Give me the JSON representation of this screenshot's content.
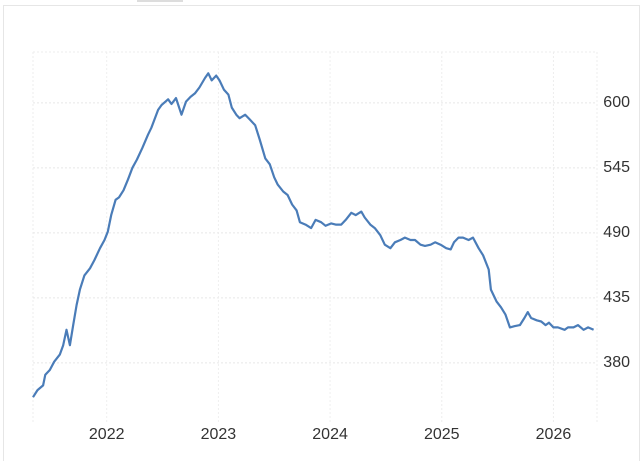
{
  "chart_data": {
    "type": "line",
    "x": [
      2021.34,
      2021.38,
      2021.43,
      2021.45,
      2021.49,
      2021.53,
      2021.58,
      2021.61,
      2021.64,
      2021.67,
      2021.7,
      2021.73,
      2021.76,
      2021.8,
      2021.85,
      2021.89,
      2021.94,
      2021.98,
      2022.01,
      2022.04,
      2022.08,
      2022.11,
      2022.15,
      2022.19,
      2022.23,
      2022.27,
      2022.32,
      2022.37,
      2022.4,
      2022.46,
      2022.49,
      2022.55,
      2022.58,
      2022.62,
      2022.67,
      2022.71,
      2022.75,
      2022.79,
      2022.83,
      2022.88,
      2022.91,
      2022.94,
      2022.98,
      2023.01,
      2023.05,
      2023.09,
      2023.12,
      2023.16,
      2023.19,
      2023.24,
      2023.28,
      2023.33,
      2023.37,
      2023.42,
      2023.46,
      2023.5,
      2023.53,
      2023.58,
      2023.62,
      2023.66,
      2023.7,
      2023.73,
      2023.78,
      2023.83,
      2023.87,
      2023.92,
      2023.96,
      2024.01,
      2024.05,
      2024.1,
      2024.14,
      2024.19,
      2024.23,
      2024.28,
      2024.31,
      2024.36,
      2024.4,
      2024.45,
      2024.49,
      2024.54,
      2024.58,
      2024.63,
      2024.67,
      2024.72,
      2024.76,
      2024.81,
      2024.85,
      2024.9,
      2024.94,
      2024.99,
      2025.04,
      2025.08,
      2025.11,
      2025.15,
      2025.19,
      2025.24,
      2025.28,
      2025.33,
      2025.37,
      2025.42,
      2025.44,
      2025.49,
      2025.53,
      2025.57,
      2025.61,
      2025.65,
      2025.7,
      2025.74,
      2025.77,
      2025.8,
      2025.85,
      2025.89,
      2025.93,
      2025.96,
      2026.0,
      2026.04,
      2026.1,
      2026.13,
      2026.18,
      2026.22,
      2026.27,
      2026.31,
      2026.36
    ],
    "series": [
      {
        "color": "#4a7cb8",
        "values": [
          351,
          357,
          361,
          370,
          374,
          381,
          387,
          395,
          408,
          395,
          412,
          429,
          442,
          454,
          460,
          467,
          477,
          484,
          491,
          505,
          518,
          520,
          526,
          535,
          545,
          552,
          562,
          573,
          579,
          594,
          598,
          603,
          599,
          604,
          590,
          601,
          605,
          608,
          613,
          621,
          625,
          619,
          623,
          619,
          611,
          607,
          596,
          590,
          587,
          590,
          586,
          581,
          569,
          553,
          548,
          537,
          531,
          525,
          522,
          514,
          509,
          499,
          497,
          494,
          501,
          499,
          496,
          498,
          497,
          497,
          501,
          507,
          505,
          508,
          503,
          497,
          494,
          488,
          480,
          477,
          482,
          484,
          486,
          484,
          484,
          480,
          479,
          480,
          482,
          480,
          477,
          476,
          482,
          486,
          486,
          484,
          486,
          477,
          471,
          459,
          442,
          432,
          427,
          421,
          410,
          411,
          412,
          418,
          423,
          418,
          416,
          415,
          412,
          414,
          410,
          410,
          408,
          410,
          410,
          412,
          408,
          410,
          408
        ]
      }
    ],
    "xlim": [
      2021.34,
      2026.39
    ],
    "xticks": [
      2022,
      2023,
      2024,
      2025,
      2026
    ],
    "ylim": [
      330,
      643
    ],
    "yticks": [
      380,
      435,
      490,
      545,
      600
    ],
    "grid": true
  }
}
